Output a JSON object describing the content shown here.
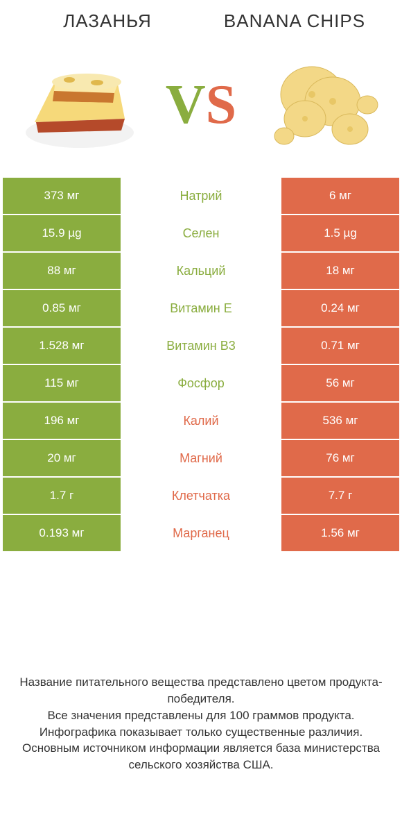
{
  "colors": {
    "green": "#8aad3f",
    "orange": "#e06a4a",
    "text": "#333333",
    "bg": "#ffffff"
  },
  "title_left": "ЛАЗАНЬЯ",
  "title_right": "BANANA CHIPS",
  "vs_v": "V",
  "vs_s": "S",
  "rows": [
    {
      "left": "373 мг",
      "mid": "Натрий",
      "right": "6 мг",
      "winner": "left"
    },
    {
      "left": "15.9 µg",
      "mid": "Селен",
      "right": "1.5 µg",
      "winner": "left"
    },
    {
      "left": "88 мг",
      "mid": "Кальций",
      "right": "18 мг",
      "winner": "left"
    },
    {
      "left": "0.85 мг",
      "mid": "Витамин E",
      "right": "0.24 мг",
      "winner": "left"
    },
    {
      "left": "1.528 мг",
      "mid": "Витамин B3",
      "right": "0.71 мг",
      "winner": "left"
    },
    {
      "left": "115 мг",
      "mid": "Фосфор",
      "right": "56 мг",
      "winner": "left"
    },
    {
      "left": "196 мг",
      "mid": "Калий",
      "right": "536 мг",
      "winner": "right"
    },
    {
      "left": "20 мг",
      "mid": "Магний",
      "right": "76 мг",
      "winner": "right"
    },
    {
      "left": "1.7 г",
      "mid": "Клетчатка",
      "right": "7.7 г",
      "winner": "right"
    },
    {
      "left": "0.193 мг",
      "mid": "Марганец",
      "right": "1.56 мг",
      "winner": "right"
    }
  ],
  "footer_lines": [
    "Название питательного вещества представлено цветом продукта-победителя.",
    "Все значения представлены для 100 граммов продукта.",
    "Инфографика показывает только существенные различия.",
    "Основным источником информации является база министерства сельского хозяйства США."
  ]
}
